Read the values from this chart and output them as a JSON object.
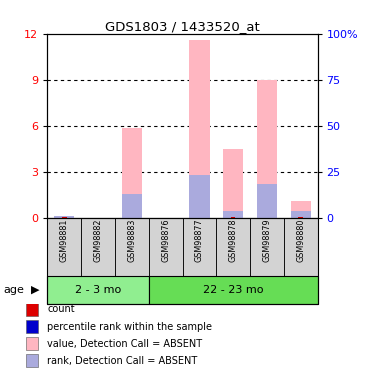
{
  "title": "GDS1803 / 1433520_at",
  "samples": [
    "GSM98881",
    "GSM98882",
    "GSM98883",
    "GSM98876",
    "GSM98877",
    "GSM98878",
    "GSM98879",
    "GSM98880"
  ],
  "groups": [
    {
      "label": "2 - 3 mo",
      "start": 0,
      "end": 3,
      "color": "#90ee90"
    },
    {
      "label": "22 - 23 mo",
      "start": 3,
      "end": 8,
      "color": "#66dd55"
    }
  ],
  "pink_bars": [
    0.05,
    0.0,
    5.85,
    0.0,
    11.6,
    4.5,
    8.95,
    1.05
  ],
  "blue_bars": [
    0.08,
    0.0,
    1.55,
    0.0,
    2.8,
    0.45,
    2.2,
    0.45
  ],
  "red_bars": [
    0.06,
    0.0,
    0.0,
    0.0,
    0.0,
    0.06,
    0.0,
    0.06
  ],
  "ylim_left": [
    0,
    12
  ],
  "ylim_right": [
    0,
    100
  ],
  "yticks_left": [
    0,
    3,
    6,
    9,
    12
  ],
  "yticks_right": [
    0,
    25,
    50,
    75,
    100
  ],
  "ytick_labels_right": [
    "0",
    "25",
    "50",
    "75",
    "100%"
  ],
  "bar_width": 0.6,
  "pink_color": "#ffb6c1",
  "blue_color": "#aaaadd",
  "red_color": "#dd0000",
  "gray_box_color": "#d3d3d3",
  "legend_colors": [
    "#dd0000",
    "#0000cc",
    "#ffb6c1",
    "#aaaadd"
  ],
  "legend_labels": [
    "count",
    "percentile rank within the sample",
    "value, Detection Call = ABSENT",
    "rank, Detection Call = ABSENT"
  ],
  "age_label": "age"
}
